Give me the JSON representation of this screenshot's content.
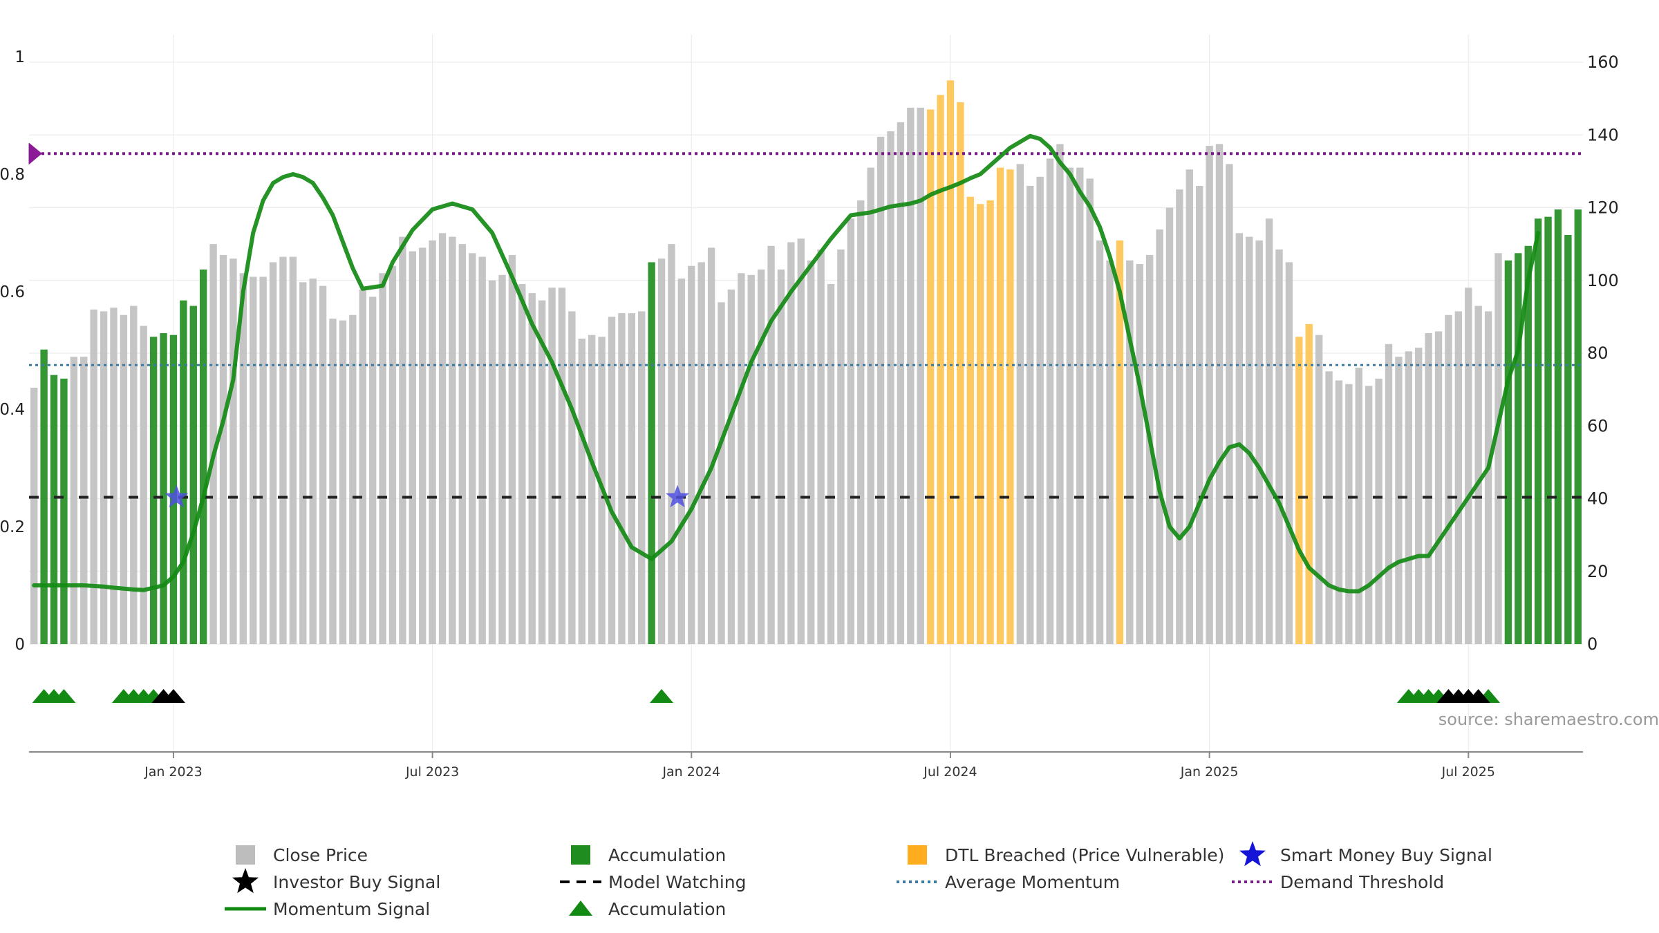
{
  "source": "source: sharemaestro.com",
  "chart_data": {
    "type": "bar",
    "left_axis": {
      "ticks": [
        "0",
        "0.2",
        "0.4",
        "0.6",
        "0.8",
        "1"
      ],
      "range": [
        0,
        1
      ]
    },
    "right_axis": {
      "ticks": [
        "0",
        "20",
        "40",
        "60",
        "80",
        "100",
        "120",
        "140",
        "160"
      ],
      "range": [
        0,
        160
      ]
    },
    "x_axis": {
      "ticks": [
        {
          "label": "Jan 2023",
          "week": 14.5
        },
        {
          "label": "Jul 2023",
          "week": 40.5
        },
        {
          "label": "Jan 2024",
          "week": 66.5
        },
        {
          "label": "Jul 2024",
          "week": 92.5
        },
        {
          "label": "Jan 2025",
          "week": 118.5
        },
        {
          "label": "Jul 2025",
          "week": 144.5
        }
      ],
      "weeks": 156
    },
    "close_price": [
      70.5,
      81,
      74,
      73,
      79,
      79,
      92,
      91.5,
      92.5,
      90.5,
      93,
      87.5,
      84.5,
      85.5,
      85,
      94.5,
      93,
      103,
      110,
      107,
      106,
      102,
      101,
      101,
      105,
      106.5,
      106.5,
      99.5,
      100.5,
      98.5,
      89.5,
      89,
      90.5,
      97.5,
      95.5,
      102,
      104,
      112,
      108,
      109,
      111,
      113,
      112,
      110,
      107.5,
      106.5,
      100,
      101.5,
      107,
      99,
      96.5,
      94.5,
      98,
      98,
      91.5,
      84,
      85,
      84.5,
      90,
      91,
      91,
      91.5,
      105,
      106,
      110,
      100.5,
      104,
      105,
      109,
      94,
      97.5,
      102,
      101.5,
      103,
      109.5,
      103,
      110.5,
      111.5,
      105.5,
      108.5,
      99,
      108.5,
      117,
      122,
      131,
      139.5,
      141,
      143.5,
      147.5,
      147.5,
      147,
      151,
      155,
      149,
      123,
      121,
      122,
      131,
      130.5,
      132,
      126,
      128.5,
      133.5,
      137.5,
      131,
      131,
      128,
      111,
      105.5,
      111,
      105.5,
      104.5,
      107,
      114,
      120,
      125,
      130.5,
      126,
      137,
      137.5,
      132,
      113,
      112,
      111,
      117,
      108.5,
      105,
      84.5,
      88,
      85,
      75,
      72.5,
      71.5,
      76,
      71,
      73,
      82.5,
      79,
      80.5,
      81.5,
      85.5,
      86,
      90.5,
      91.5,
      98,
      93,
      91.5,
      107.5,
      105.5,
      107.5,
      109.5,
      117,
      117.5,
      119.5,
      112.5,
      119.5
    ],
    "bar_category": "GAAAGGGGGGGGAAAAAAGGGGGGGGGGGGGGGGGGGGGGGGGGGGGGGGGGGGGGGGGGGGAGGGGGGGGGGGGGGGGGGGGGGGGGGGDDDDDDDDDGGGGGGGGGGDGGGGGGGGGGGGGGGGGDDGGGGGGGGGGGGGGGGGGGAAAAAAAAGAGGGGGGG",
    "momentum_signal": [
      0.1,
      0.1,
      0.1,
      0.1,
      0.098,
      0.096,
      0.093,
      0.092,
      0.1,
      0.115,
      0.14,
      0.19,
      0.25,
      0.32,
      0.38,
      0.45,
      0.6,
      0.7,
      0.755,
      0.785,
      0.795,
      0.8,
      0.795,
      0.785,
      0.76,
      0.73,
      0.685,
      0.64,
      0.605,
      0.61,
      0.65,
      0.705,
      0.74,
      0.75,
      0.74,
      0.7,
      0.625,
      0.545,
      0.48,
      0.4,
      0.31,
      0.225,
      0.165,
      0.145,
      0.175,
      0.23,
      0.3,
      0.39,
      0.48,
      0.55,
      0.6,
      0.645,
      0.69,
      0.73,
      0.735,
      0.745,
      0.75,
      0.755,
      0.765,
      0.772,
      0.778,
      0.785,
      0.793,
      0.8,
      0.815,
      0.83,
      0.845,
      0.855,
      0.865,
      0.86,
      0.845,
      0.82,
      0.8,
      0.77,
      0.745,
      0.71,
      0.66,
      0.6,
      0.52,
      0.44,
      0.35,
      0.26,
      0.2,
      0.18,
      0.2,
      0.24,
      0.28,
      0.31,
      0.335,
      0.34,
      0.325,
      0.3,
      0.27,
      0.24,
      0.2,
      0.16,
      0.13,
      0.115,
      0.1,
      0.093,
      0.09,
      0.09,
      0.1,
      0.115,
      0.13,
      0.14,
      0.145,
      0.15,
      0.15,
      0.3,
      0.45,
      0.5,
      0.62,
      0.7
    ],
    "momentum_weeks": [
      0,
      2,
      4,
      5,
      7,
      8,
      10,
      11,
      13,
      14,
      15,
      16,
      17,
      18,
      19,
      20,
      21,
      22,
      23,
      24,
      25,
      26,
      27,
      28,
      29,
      30,
      31,
      32,
      33,
      35,
      36,
      38,
      40,
      42,
      44,
      46,
      48,
      50,
      52,
      54,
      56,
      58,
      60,
      62,
      64,
      66,
      68,
      70,
      72,
      74,
      76,
      78,
      80,
      82,
      84,
      86,
      88,
      89,
      90,
      91,
      92,
      93,
      94,
      95,
      96,
      97,
      98,
      99,
      100,
      101,
      102,
      103,
      104,
      105,
      106,
      107,
      108,
      109,
      110,
      111,
      112,
      113,
      114,
      115,
      116,
      117,
      118,
      119,
      120,
      121,
      122,
      123,
      124,
      125,
      126,
      127,
      128,
      129,
      130,
      131,
      132,
      133,
      134,
      135,
      136,
      137,
      138,
      139,
      140,
      146,
      148,
      149,
      150,
      151
    ],
    "model_watching": 0.25,
    "average_momentum": 0.475,
    "demand_threshold": 0.835,
    "smart_money_buy_weeks": [
      14.3,
      64.6
    ],
    "accumulation_marker_weeks": [
      1,
      2,
      3,
      9,
      10,
      11,
      12,
      63,
      138,
      139,
      140,
      141,
      146
    ],
    "investor_buy_marker_weeks": [
      13,
      14,
      142,
      143,
      144,
      145
    ],
    "legend": [
      {
        "label": "Close Price",
        "color": "#bdbdbd",
        "kind": "square"
      },
      {
        "label": "Accumulation",
        "color": "#1e8c1e",
        "kind": "square"
      },
      {
        "label": "DTL Breached (Price Vulnerable)",
        "color": "#ffad1f",
        "kind": "square"
      },
      {
        "label": "Smart Money Buy Signal",
        "color": "#1515d8",
        "kind": "star"
      },
      {
        "label": "Investor Buy Signal",
        "color": "#000000",
        "kind": "star"
      },
      {
        "label": "Model Watching",
        "color": "#000000",
        "kind": "dash"
      },
      {
        "label": "Average Momentum",
        "color": "#3a7aa0",
        "kind": "dot"
      },
      {
        "label": "Demand Threshold",
        "color": "#7a1a8a",
        "kind": "dot"
      },
      {
        "label": "Momentum Signal",
        "color": "#138a13",
        "kind": "line"
      },
      {
        "label": "Accumulation",
        "color": "#138a13",
        "kind": "triangle"
      }
    ]
  }
}
